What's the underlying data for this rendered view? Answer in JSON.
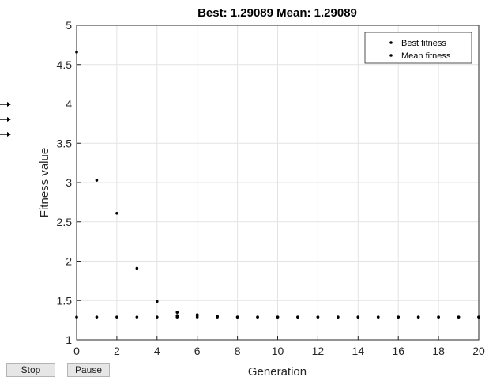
{
  "chart_data": {
    "type": "scatter",
    "title": "Best: 1.29089 Mean: 1.29089",
    "xlabel": "Generation",
    "ylabel": "Fitness value",
    "xlim": [
      0,
      20
    ],
    "ylim": [
      1,
      5
    ],
    "xticks": [
      0,
      2,
      4,
      6,
      8,
      10,
      12,
      14,
      16,
      18,
      20
    ],
    "yticks": [
      1,
      1.5,
      2,
      2.5,
      3,
      3.5,
      4,
      4.5,
      5
    ],
    "grid": true,
    "legend_position": "top-right",
    "series": [
      {
        "name": "Best fitness",
        "color": "#000000",
        "x": [
          0,
          1,
          2,
          3,
          4,
          5,
          6,
          7,
          8,
          9,
          10,
          11,
          12,
          13,
          14,
          15,
          16,
          17,
          18,
          19,
          20
        ],
        "y": [
          1.29,
          1.29,
          1.29,
          1.29,
          1.29,
          1.29,
          1.29,
          1.29,
          1.29,
          1.29,
          1.29,
          1.29,
          1.29,
          1.29,
          1.29,
          1.29,
          1.29,
          1.29,
          1.29,
          1.29,
          1.29
        ]
      },
      {
        "name": "Mean fitness",
        "color": "#000000",
        "x": [
          0,
          1,
          2,
          3,
          4,
          5,
          6,
          7,
          8,
          9,
          10,
          11,
          12,
          13,
          14,
          15,
          16,
          17,
          18,
          19,
          20
        ],
        "y": [
          4.66,
          3.03,
          2.61,
          1.91,
          1.49,
          1.35,
          1.32,
          1.3,
          1.29,
          1.29,
          1.29,
          1.29,
          1.29,
          1.29,
          1.29,
          1.29,
          1.29,
          1.29,
          1.29,
          1.29,
          1.29
        ]
      }
    ],
    "extra_points": [
      {
        "x": 5,
        "y": 1.31
      },
      {
        "x": 6,
        "y": 1.31
      }
    ]
  },
  "side_arrows": 3,
  "controls": {
    "stop_label": "Stop",
    "pause_label": "Pause"
  }
}
